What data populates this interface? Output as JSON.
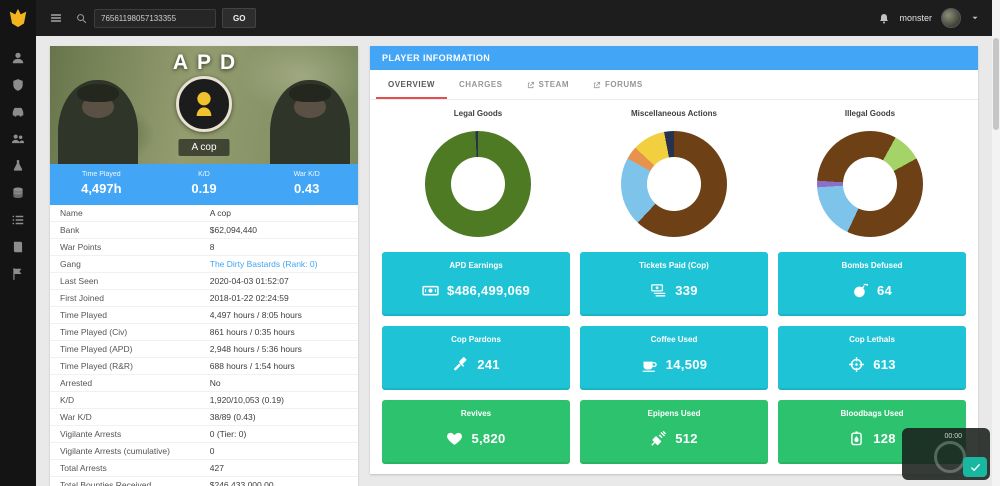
{
  "colors": {
    "accent": "#42a5f5",
    "teal": "#1ec4d6",
    "green": "#2dc36e",
    "tab_underline": "#e34f4f",
    "topbar": "#1d1d1d",
    "sidebar": "#141414",
    "logo_yellow": "#f2b51d"
  },
  "topbar": {
    "search_value": "76561198057133355",
    "go_label": "GO",
    "username": "monster"
  },
  "sidebar": {
    "items": [
      {
        "icon": "person"
      },
      {
        "icon": "shield"
      },
      {
        "icon": "car"
      },
      {
        "icon": "users"
      },
      {
        "icon": "flask"
      },
      {
        "icon": "coins"
      },
      {
        "icon": "list"
      },
      {
        "icon": "book"
      },
      {
        "icon": "flag"
      }
    ]
  },
  "profile_card": {
    "banner_title": "APD",
    "player_name": "A cop",
    "stats": [
      {
        "label": "Time Played",
        "value": "4,497h"
      },
      {
        "label": "K/D",
        "value": "0.19"
      },
      {
        "label": "War K/D",
        "value": "0.43"
      }
    ],
    "details": [
      {
        "label": "Name",
        "value": "A cop"
      },
      {
        "label": "Bank",
        "value": "$62,094,440"
      },
      {
        "label": "War Points",
        "value": "8"
      },
      {
        "label": "Gang",
        "value": "The Dirty Bastards (Rank: 0)",
        "link": true
      },
      {
        "label": "Last Seen",
        "value": "2020-04-03 01:52:07"
      },
      {
        "label": "First Joined",
        "value": "2018-01-22 02:24:59"
      },
      {
        "label": "Time Played",
        "value": "4,497 hours / 8:05 hours"
      },
      {
        "label": "Time Played (Civ)",
        "value": "861 hours / 0:35 hours"
      },
      {
        "label": "Time Played (APD)",
        "value": "2,948 hours / 5:36 hours"
      },
      {
        "label": "Time Played (R&R)",
        "value": "688 hours / 1:54 hours"
      },
      {
        "label": "Arrested",
        "value": "No"
      },
      {
        "label": "K/D",
        "value": "1,920/10,053 (0.19)"
      },
      {
        "label": "War K/D",
        "value": "38/89 (0.43)"
      },
      {
        "label": "Vigilante Arrests",
        "value": "0 (Tier: 0)"
      },
      {
        "label": "Vigilante Arrests (cumulative)",
        "value": "0"
      },
      {
        "label": "Total Arrests",
        "value": "427"
      },
      {
        "label": "Total Bounties Received",
        "value": "$246,433,000.00"
      }
    ]
  },
  "player_panel": {
    "header": "PLAYER INFORMATION",
    "tabs": [
      {
        "label": "OVERVIEW",
        "active": true
      },
      {
        "label": "CHARGES"
      },
      {
        "label": "STEAM",
        "external": true
      },
      {
        "label": "FORUMS",
        "external": true
      }
    ],
    "cards": [
      {
        "title": "APD Earnings",
        "value": "$486,499,069",
        "icon": "money",
        "color": "teal"
      },
      {
        "title": "Tickets Paid (Cop)",
        "value": "339",
        "icon": "bills",
        "color": "teal"
      },
      {
        "title": "Bombs Defused",
        "value": "64",
        "icon": "bomb",
        "color": "teal"
      },
      {
        "title": "Cop Pardons",
        "value": "241",
        "icon": "gavel",
        "color": "teal"
      },
      {
        "title": "Coffee Used",
        "value": "14,509",
        "icon": "coffee",
        "color": "teal"
      },
      {
        "title": "Cop Lethals",
        "value": "613",
        "icon": "crosshair",
        "color": "teal"
      },
      {
        "title": "Revives",
        "value": "5,820",
        "icon": "heart",
        "color": "green"
      },
      {
        "title": "Epipens Used",
        "value": "512",
        "icon": "syringe",
        "color": "green"
      },
      {
        "title": "Bloodbags Used",
        "value": "128",
        "icon": "bloodbag",
        "color": "green"
      }
    ]
  },
  "chart_data": [
    {
      "type": "donut",
      "title": "Legal Goods",
      "slices": [
        {
          "color": "#4e7a23",
          "value": 99.2
        },
        {
          "color": "#26324f",
          "value": 0.8
        }
      ]
    },
    {
      "type": "donut",
      "title": "Miscellaneous Actions",
      "slices": [
        {
          "color": "#6e4016",
          "value": 62
        },
        {
          "color": "#7ec3ea",
          "value": 21
        },
        {
          "color": "#e8924d",
          "value": 4
        },
        {
          "color": "#f2cf3e",
          "value": 10
        },
        {
          "color": "#26324f",
          "value": 3
        }
      ]
    },
    {
      "type": "donut",
      "title": "Illegal Goods",
      "slices": [
        {
          "color": "#6e4016",
          "value": 8
        },
        {
          "color": "#a4d467",
          "value": 9
        },
        {
          "color": "#6e4016",
          "value": 40
        },
        {
          "color": "#7ec3ea",
          "value": 17
        },
        {
          "color": "#8e6fc8",
          "value": 2
        },
        {
          "color": "#6e4016",
          "value": 24
        }
      ]
    }
  ],
  "recorder": {
    "time": "00:00"
  }
}
